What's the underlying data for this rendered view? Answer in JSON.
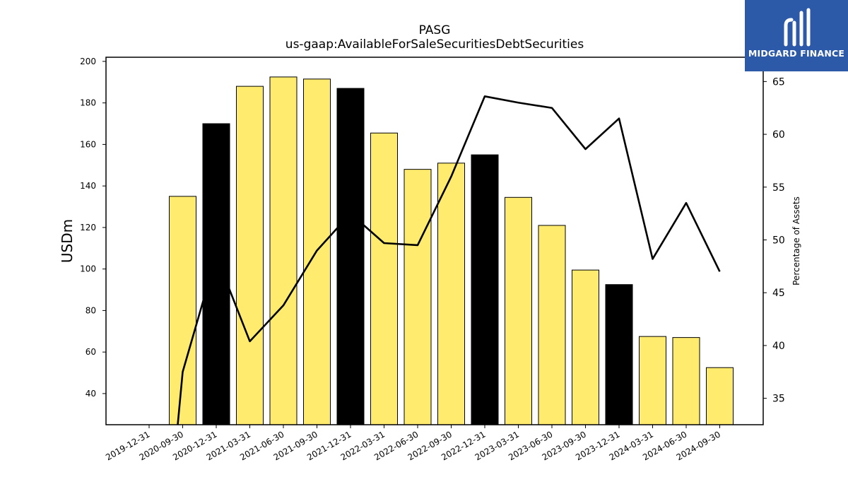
{
  "chart_data": {
    "type": "bar",
    "title": "PASG",
    "subtitle": "us-gaap:AvailableForSaleSecuritiesDebtSecurities",
    "ylabel": "USDm",
    "y2label": "Percentage of Assets",
    "ylim": [
      25,
      202
    ],
    "y2lim": [
      32.5,
      67.3
    ],
    "yticks": [
      40,
      60,
      80,
      100,
      120,
      140,
      160,
      180,
      200
    ],
    "y2ticks": [
      35,
      40,
      45,
      50,
      55,
      60,
      65
    ],
    "categories": [
      "2019-12-31",
      "2020-09-30",
      "2020-12-31",
      "2021-03-31",
      "2021-06-30",
      "2021-09-30",
      "2021-12-31",
      "2022-03-31",
      "2022-06-30",
      "2022-09-30",
      "2022-12-31",
      "2023-03-31",
      "2023-06-30",
      "2023-09-30",
      "2023-12-31",
      "2024-03-31",
      "2024-06-30",
      "2024-09-30"
    ],
    "series": [
      {
        "kind": "bar",
        "values": [
          null,
          135,
          170,
          188,
          192.5,
          191.5,
          187,
          165.5,
          148,
          151,
          155,
          134.5,
          121,
          99.5,
          92.5,
          67.5,
          67,
          52.5
        ],
        "colors": [
          "#ffec6e",
          "#ffec6e",
          "#000000",
          "#ffec6e",
          "#ffec6e",
          "#ffec6e",
          "#000000",
          "#ffec6e",
          "#ffec6e",
          "#ffec6e",
          "#000000",
          "#ffec6e",
          "#ffec6e",
          "#ffec6e",
          "#000000",
          "#ffec6e",
          "#ffec6e",
          "#ffec6e"
        ]
      },
      {
        "kind": "line",
        "axis": "right",
        "color": "#000000",
        "values": [
          null,
          37.5,
          48.5,
          40.4,
          43.8,
          49.0,
          52.5,
          49.7,
          49.5,
          56.0,
          63.6,
          63.0,
          62.5,
          58.6,
          61.5,
          48.2,
          53.5,
          47.0
        ],
        "start_value": 32.5
      }
    ],
    "grid": false
  },
  "logo": {
    "name": "MIDGARD FINANCE",
    "color": "#2c5aa8"
  }
}
